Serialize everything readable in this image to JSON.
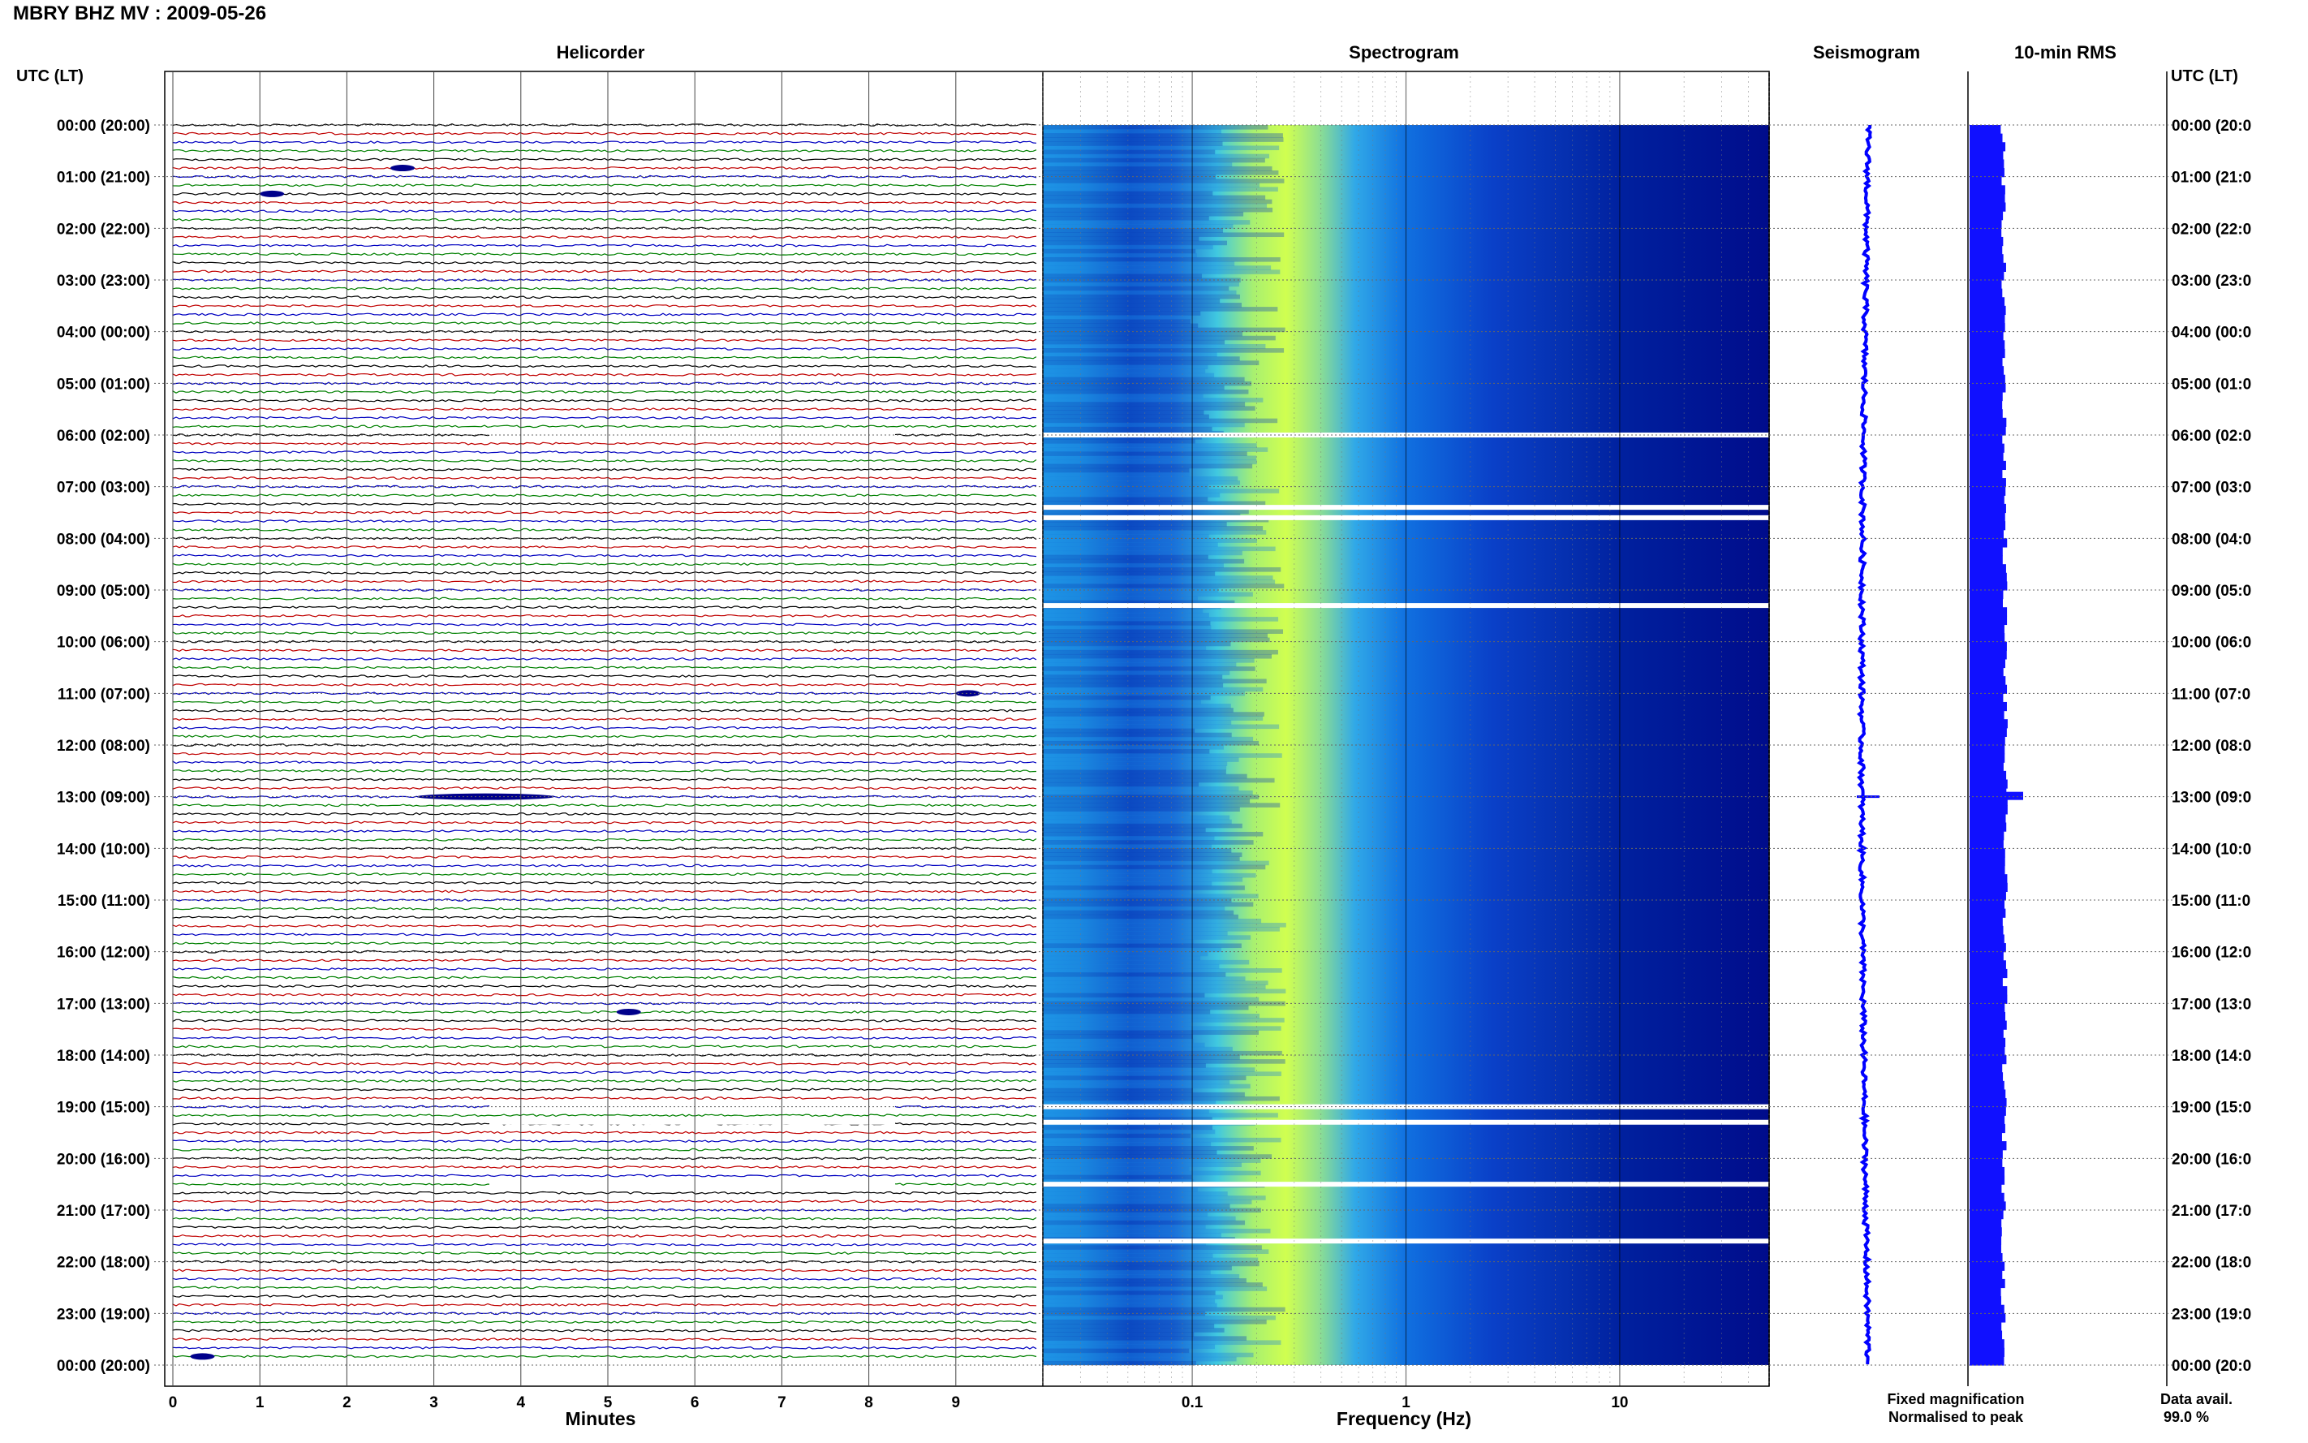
{
  "title": "MBRY BHZ MV : 2009-05-26",
  "panels": {
    "helicorder": "Helicorder",
    "spectrogram": "Spectrogram",
    "seismogram": "Seismogram",
    "rms": "10-min RMS"
  },
  "axis_label_left": "UTC (LT)",
  "axis_label_right": "UTC (LT)",
  "time_labels": [
    "00:00 (20:00)",
    "01:00 (21:00)",
    "02:00 (22:00)",
    "03:00 (23:00)",
    "04:00 (00:00)",
    "05:00 (01:00)",
    "06:00 (02:00)",
    "07:00 (03:00)",
    "08:00 (04:00)",
    "09:00 (05:00)",
    "10:00 (06:00)",
    "11:00 (07:00)",
    "12:00 (08:00)",
    "13:00 (09:00)",
    "14:00 (10:00)",
    "15:00 (11:00)",
    "16:00 (12:00)",
    "17:00 (13:00)",
    "18:00 (14:00)",
    "19:00 (15:00)",
    "20:00 (16:00)",
    "21:00 (17:00)",
    "22:00 (18:00)",
    "23:00 (19:00)",
    "00:00 (20:00)"
  ],
  "time_labels_right": [
    "00:00 (20:0",
    "01:00 (21:0",
    "02:00 (22:0",
    "03:00 (23:0",
    "04:00 (00:0",
    "05:00 (01:0",
    "06:00 (02:0",
    "07:00 (03:0",
    "08:00 (04:0",
    "09:00 (05:0",
    "10:00 (06:0",
    "11:00 (07:0",
    "12:00 (08:0",
    "13:00 (09:0",
    "14:00 (10:0",
    "15:00 (11:0",
    "16:00 (12:0",
    "17:00 (13:0",
    "18:00 (14:0",
    "19:00 (15:0",
    "20:00 (16:0",
    "21:00 (17:0",
    "22:00 (18:0",
    "23:00 (19:0",
    "00:00 (20:0"
  ],
  "helicorder_xlabel": "Minutes",
  "helicorder_xticks": [
    "0",
    "1",
    "2",
    "3",
    "4",
    "5",
    "6",
    "7",
    "8",
    "9"
  ],
  "spectrogram_xlabel": "Frequency (Hz)",
  "spectrogram_xticks": [
    "0.1",
    "1",
    "10"
  ],
  "legend": {
    "fixed": "Fixed magnification",
    "normalised": "Normalised to peak",
    "fixed_color": "#1a1aff",
    "normalised_color": "#ff0000"
  },
  "data_avail_label": "Data avail.",
  "data_avail_value": "99.0 %",
  "colors": {
    "trace_cycle": [
      "#000000",
      "#c00000",
      "#0000c0",
      "#008000"
    ],
    "spectrogram_low": "#00008b",
    "spectrogram_high": "#b8ff40",
    "seismogram": "#0000ff",
    "rms": "#1010ff"
  },
  "chart_data": [
    {
      "type": "line",
      "title": "Helicorder",
      "xlabel": "Minutes",
      "xlim": [
        0,
        10
      ],
      "lines_per_hour": 6,
      "hours": 24,
      "events": [
        {
          "time": "00:50",
          "minute": 2.5,
          "label": ""
        },
        {
          "time": "01:20",
          "minute": 1.0,
          "label": ""
        },
        {
          "time": "11:00",
          "minute": 9.0,
          "label": ""
        },
        {
          "time": "13:00",
          "minute": 2.8,
          "label": ""
        },
        {
          "time": "17:10",
          "minute": 5.1,
          "label": ""
        },
        {
          "time": "23:50",
          "minute": 0.2,
          "label": ""
        }
      ],
      "gaps_hours": [
        6.0,
        7.4,
        7.6,
        19.0,
        19.3,
        20.5,
        21.6
      ]
    },
    {
      "type": "heatmap",
      "title": "Spectrogram",
      "xlabel": "Frequency (Hz)",
      "xscale": "log",
      "xlim": [
        0.02,
        50
      ],
      "energy_peak_hz": 0.35,
      "gaps_hours": [
        6.0,
        7.4,
        7.6,
        9.3,
        19.0,
        19.3,
        20.5,
        21.6
      ]
    },
    {
      "type": "line",
      "title": "Seismogram",
      "spike_hour": 13.0
    },
    {
      "type": "bar",
      "title": "10-min RMS",
      "spike_hour": 13.0
    }
  ]
}
